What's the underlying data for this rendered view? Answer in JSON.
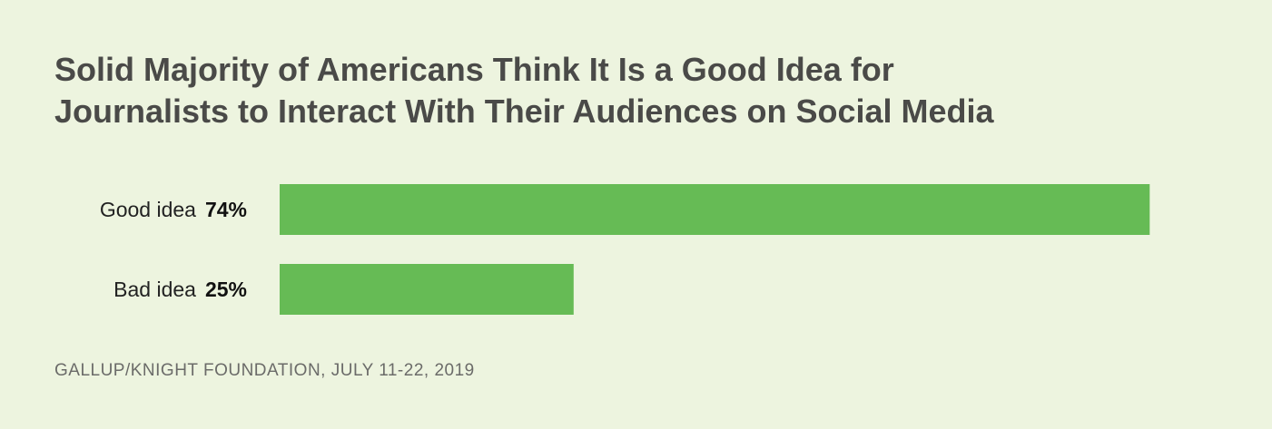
{
  "chart_data": {
    "type": "bar",
    "orientation": "horizontal",
    "title_lines": [
      "Solid Majority of Americans Think It Is a Good Idea for",
      "Journalists to Interact With Their Audiences on Social Media"
    ],
    "categories": [
      "Good idea",
      "Bad idea"
    ],
    "values": [
      74,
      25
    ],
    "value_labels": [
      "74%",
      "25%"
    ],
    "unit": "%",
    "bar_color": "#66bb55",
    "background_color": "#edf4df",
    "grid": false,
    "legend": "none"
  },
  "source": "GALLUP/KNIGHT FOUNDATION, JULY 11-22, 2019"
}
